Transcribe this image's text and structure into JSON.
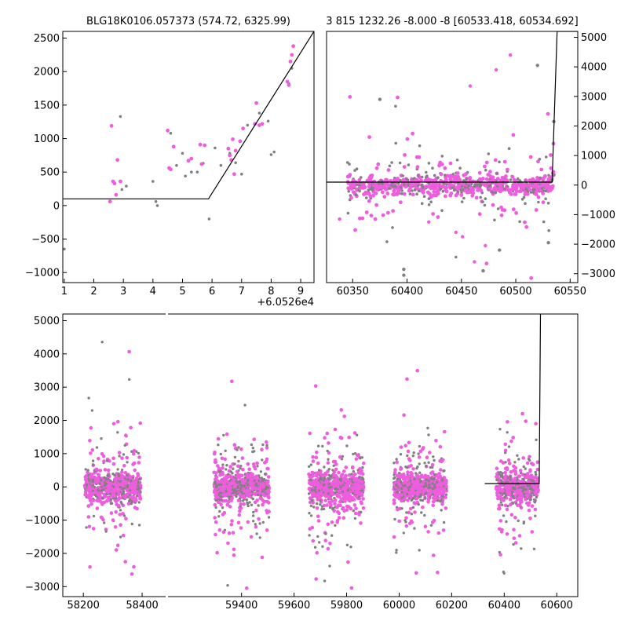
{
  "chart_data": [
    {
      "type": "scatter",
      "panel": "top-left",
      "title": "BLG18K0106.057373 (574.72, 6325.99)",
      "xlabel": "",
      "ylabel": "",
      "xlim": [
        0.95,
        9.45
      ],
      "ylim": [
        -1150,
        2600
      ],
      "x_offset_text": "+6.0526e4",
      "xticks": [
        1,
        2,
        3,
        4,
        5,
        6,
        7,
        8,
        9
      ],
      "yticks": [
        -1000,
        -500,
        0,
        500,
        1000,
        1500,
        2000,
        2500
      ],
      "ytick_side": "left",
      "series": [
        {
          "color": "#808080",
          "marker_radius": 1.8,
          "x": [
            1.0,
            2.9,
            2.95,
            3.1,
            4.0,
            4.1,
            4.15,
            4.6,
            4.8,
            5.0,
            5.1,
            5.3,
            5.5,
            5.7,
            5.9,
            6.1,
            6.3,
            6.6,
            6.8,
            7.0,
            7.2,
            7.6,
            7.9,
            8.0,
            8.1,
            8.6,
            8.7
          ],
          "y": [
            -650,
            1330,
            240,
            290,
            360,
            60,
            0,
            1080,
            600,
            780,
            440,
            500,
            500,
            630,
            -200,
            860,
            600,
            780,
            640,
            470,
            1200,
            1380,
            1260,
            760,
            800,
            1820,
            2050
          ]
        },
        {
          "color": "#f05ce0",
          "marker_radius": 2.4,
          "x": [
            2.55,
            2.6,
            2.65,
            2.7,
            2.75,
            2.8,
            2.9,
            4.5,
            4.55,
            4.6,
            4.7,
            5.2,
            5.3,
            5.6,
            5.65,
            5.75,
            6.55,
            6.6,
            6.65,
            6.7,
            6.75,
            6.8,
            6.95,
            7.05,
            7.45,
            7.5,
            7.6,
            7.7,
            8.55,
            8.6,
            8.65,
            8.7,
            8.75
          ],
          "y": [
            60,
            1190,
            360,
            330,
            160,
            680,
            360,
            1120,
            560,
            540,
            880,
            670,
            700,
            910,
            620,
            900,
            850,
            750,
            680,
            990,
            470,
            820,
            960,
            1150,
            1220,
            1530,
            1200,
            1220,
            1850,
            1800,
            2150,
            2250,
            2380
          ]
        }
      ],
      "model_line": {
        "color": "#000000",
        "x": [
          0.95,
          5.88,
          9.45
        ],
        "y": [
          100,
          100,
          2600
        ]
      }
    },
    {
      "type": "scatter",
      "panel": "top-right",
      "title": "3 815 1232.26 -8.000 -8 [60533.418, 60534.692]",
      "xlabel": "",
      "ylabel": "",
      "xlim": [
        60326,
        60557
      ],
      "ylim": [
        -3300,
        5200
      ],
      "xticks": [
        60350,
        60400,
        60450,
        60500,
        60550
      ],
      "yticks": [
        -3000,
        -2000,
        -1000,
        0,
        1000,
        2000,
        3000,
        4000,
        5000
      ],
      "ytick_side": "right",
      "series_colors": [
        "#808080",
        "#f05ce0"
      ],
      "outliers": [
        {
          "color": "#808080",
          "x": [
            60397,
            60397,
            60520,
            60485,
            60470,
            60530,
            60535,
            60375
          ],
          "y": [
            -2850,
            -3050,
            4050,
            -2200,
            -2900,
            -1950,
            2150,
            2900
          ]
        },
        {
          "color": "#f05ce0",
          "x": [
            60495,
            60482,
            60458,
            60451,
            60462,
            60472,
            60338,
            60420,
            60445
          ],
          "y": [
            4400,
            3900,
            3350,
            -1750,
            -2600,
            -2050,
            -1150,
            -1250,
            -1600
          ]
        }
      ],
      "model_line": {
        "color": "#000000",
        "x": [
          60326,
          60533.4,
          60538,
          60557
        ],
        "y": [
          100,
          100,
          5200,
          5200
        ]
      }
    },
    {
      "type": "scatter",
      "panel": "bottom",
      "title": "",
      "xlabel": "",
      "ylabel": "",
      "broken_x_axis": true,
      "segments": [
        {
          "xlim": [
            58130,
            58480
          ],
          "xticks": [
            58200,
            58400
          ]
        },
        {
          "xlim": [
            59120,
            60680
          ],
          "xticks": [
            59400,
            59600,
            59800,
            60000,
            60200,
            60400,
            60600
          ]
        }
      ],
      "ylim": [
        -3300,
        5200
      ],
      "yticks": [
        -3000,
        -2000,
        -1000,
        0,
        1000,
        2000,
        3000,
        4000,
        5000
      ],
      "ytick_side": "left",
      "seasons": [
        {
          "center": 58300,
          "half_width": 95
        },
        {
          "center": 59400,
          "half_width": 105
        },
        {
          "center": 59760,
          "half_width": 105
        },
        {
          "center": 60080,
          "half_width": 100
        },
        {
          "center": 60450,
          "half_width": 80
        }
      ],
      "series_colors": [
        "#808080",
        "#f05ce0"
      ],
      "model_line": {
        "color": "#000000",
        "x": [
          60326,
          60533.4,
          60538
        ],
        "y": [
          100,
          100,
          5200
        ]
      }
    }
  ],
  "tick_labels": {
    "tl_x": [
      "1",
      "2",
      "3",
      "4",
      "5",
      "6",
      "7",
      "8",
      "9"
    ],
    "tl_y": [
      "−1000",
      "−500",
      "0",
      "500",
      "1000",
      "1500",
      "2000",
      "2500"
    ],
    "tr_x": [
      "60350",
      "60400",
      "60450",
      "60500",
      "60550"
    ],
    "tr_y": [
      "−3000",
      "−2000",
      "−1000",
      "0",
      "1000",
      "2000",
      "3000",
      "4000",
      "5000"
    ],
    "b_x1": [
      "58200",
      "58400"
    ],
    "b_x2": [
      "59400",
      "59600",
      "59800",
      "60000",
      "60200",
      "60400",
      "60600"
    ],
    "b_y": [
      "−3000",
      "−2000",
      "−1000",
      "0",
      "1000",
      "2000",
      "3000",
      "4000",
      "5000"
    ]
  }
}
